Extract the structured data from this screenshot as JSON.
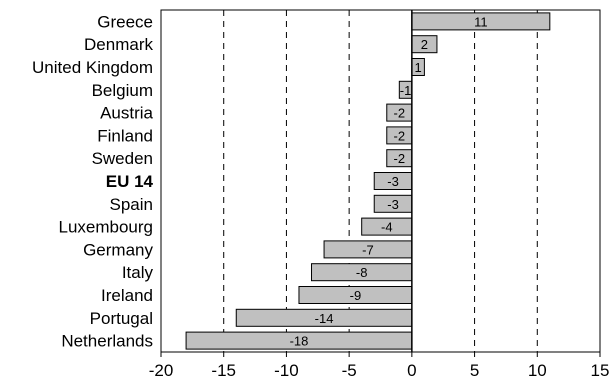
{
  "chart_data": {
    "type": "bar",
    "orientation": "horizontal",
    "categories": [
      "Greece",
      "Denmark",
      "United Kingdom",
      "Belgium",
      "Austria",
      "Finland",
      "Sweden",
      "EU 14",
      "Spain",
      "Luxembourg",
      "Germany",
      "Italy",
      "Ireland",
      "Portugal",
      "Netherlands"
    ],
    "values": [
      11,
      2,
      1,
      -1,
      -2,
      -2,
      -2,
      -3,
      -3,
      -4,
      -7,
      -8,
      -9,
      -14,
      -18
    ],
    "data_labels": [
      "11",
      "2",
      "1",
      "-1",
      "-2",
      "-2",
      "-2",
      "-3",
      "-3",
      "-4",
      "-7",
      "-8",
      "-9",
      "-14",
      "-18"
    ],
    "bold_categories": [
      "EU 14"
    ],
    "xlim": [
      -20,
      15
    ],
    "xticks": [
      -20,
      -15,
      -10,
      -5,
      0,
      5,
      10,
      15
    ],
    "xtick_labels": [
      "-20",
      "-15",
      "-10",
      "-5",
      "0",
      "5",
      "10",
      "15"
    ],
    "grid": "vertical dashed",
    "title": "",
    "xlabel": "",
    "ylabel": "",
    "colors": {
      "bar_fill": "#c0c0c0",
      "bar_stroke": "#000000",
      "axis": "#000000",
      "grid": "#000000"
    }
  }
}
